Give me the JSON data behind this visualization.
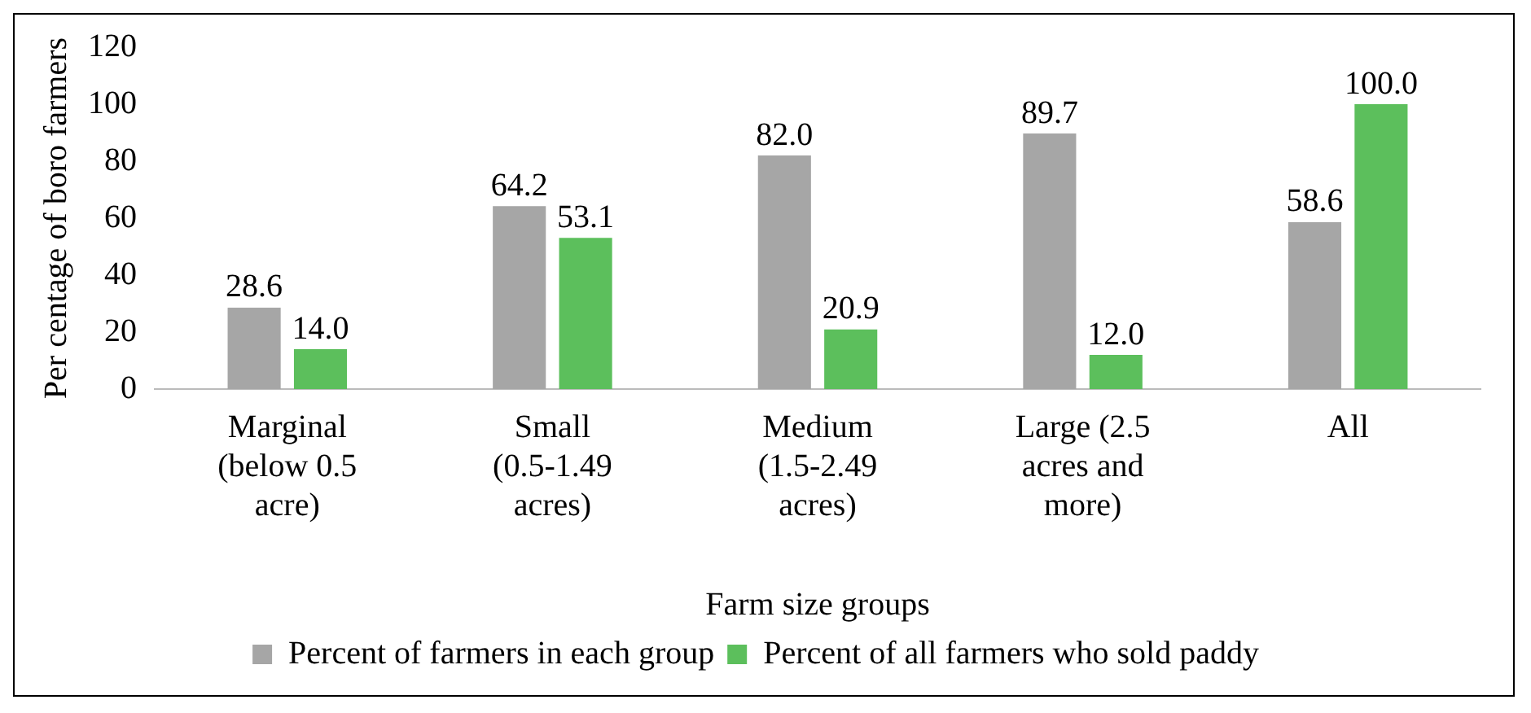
{
  "chart_data": {
    "type": "bar",
    "xlabel": "Farm size groups",
    "ylabel": "Per centage of boro farmers",
    "categories": [
      "Marginal (below 0.5 acre)",
      "Small (0.5-1.49 acres)",
      "Medium (1.5-2.49 acres)",
      "Large (2.5 acres and more)",
      "All"
    ],
    "series": [
      {
        "name": "Percent of farmers in each group",
        "color": "#a6a6a6",
        "values": [
          28.6,
          64.2,
          82.0,
          89.7,
          58.6
        ],
        "value_labels": [
          "28.6",
          "64.2",
          "82.0",
          "89.7",
          "58.6"
        ]
      },
      {
        "name": "Percent of all farmers who sold paddy",
        "color": "#5cbf5c",
        "values": [
          14.0,
          53.1,
          20.9,
          12.0,
          100.0
        ],
        "value_labels": [
          "14.0",
          "53.1",
          "20.9",
          "12.0",
          "100.0"
        ]
      }
    ],
    "ylim": [
      0,
      120
    ],
    "yticks": [
      0,
      20,
      40,
      60,
      80,
      100,
      120
    ],
    "grid": false,
    "legend": "bottom"
  }
}
